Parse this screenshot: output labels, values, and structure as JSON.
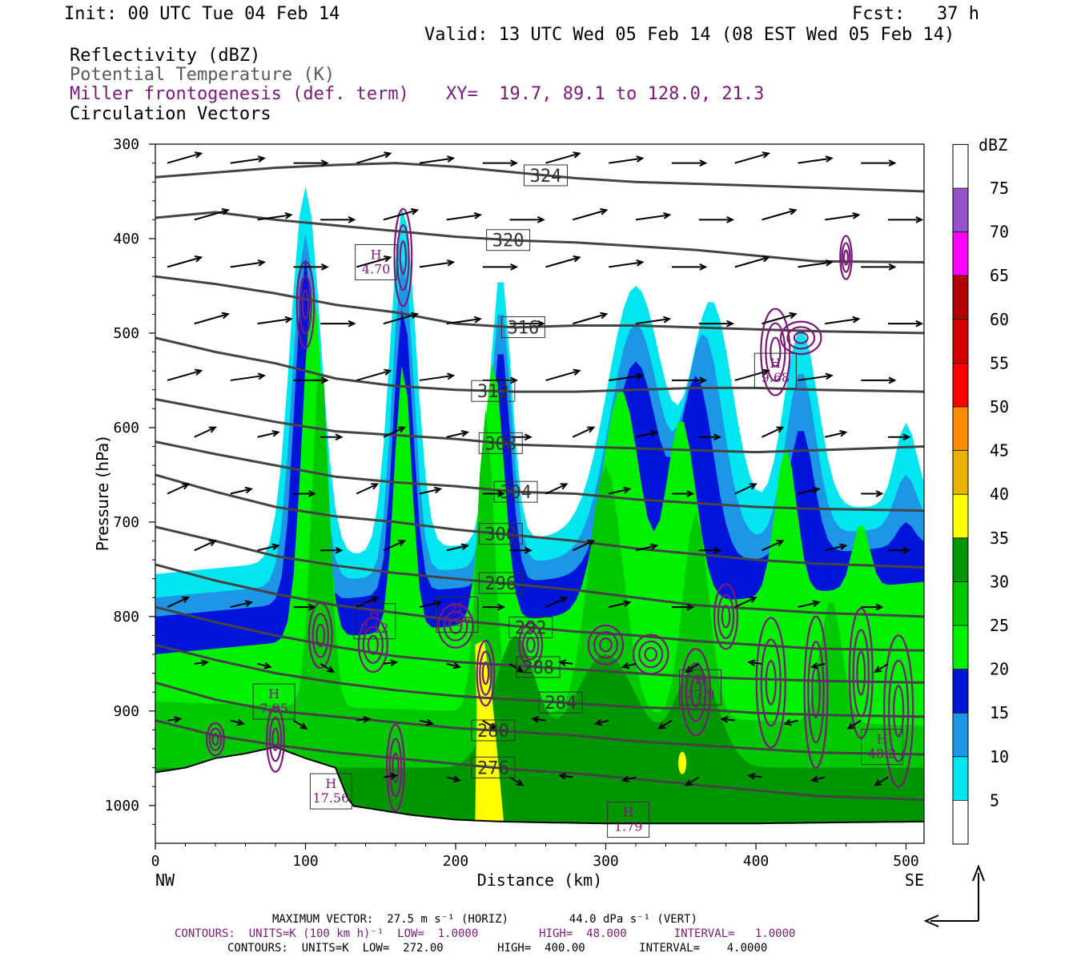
{
  "header": {
    "init": "Init: 00 UTC Tue 04 Feb 14",
    "fcst": "Fcst:   37 h",
    "valid": "Valid: 13 UTC Wed 05 Feb 14 (08 EST Wed 05 Feb 14)"
  },
  "legend_lines": {
    "reflectivity": "Reflectivity (dBZ)",
    "theta": "Potential Temperature (K)",
    "miller": "Miller frontogenesis (def. term)",
    "xy": "XY=  19.7, 89.1 to 128.0, 21.3",
    "vectors": "Circulation Vectors"
  },
  "colors": {
    "cyan": "#00e6f0",
    "lightblue": "#1e96e6",
    "blue": "#0014dc",
    "green": "#00f000",
    "midgreen": "#00c800",
    "darkgreen": "#009600",
    "yellow": "#ffff00",
    "gold": "#e6b400",
    "orange": "#ff8c00",
    "red": "#ff0000",
    "darkred": "#d20000",
    "maroon": "#b40000",
    "magenta": "#ff00ff",
    "violet": "#9650c8",
    "white": "#ffffff",
    "contour_theta": "#444444",
    "contour_fronto": "#7a1a7a"
  },
  "footer": {
    "max_vector": "MAXIMUM VECTOR:  27.5 m s⁻¹ (HORIZ)         44.0 dPa s⁻¹ (VERT)",
    "contours_fronto": "CONTOURS:  UNITS=K (100 km h)⁻¹  LOW=  1.0000         HIGH=  48.000       INTERVAL=   1.0000",
    "contours_theta": "CONTOURS:  UNITS=K  LOW=  272.00        HIGH=  400.00        INTERVAL=    4.0000"
  },
  "chart_data": {
    "type": "heatmap",
    "title": "Reflectivity (dBZ)",
    "xlabel": "Distance (km)",
    "ylabel": "Pressure (hPa)",
    "xlim": [
      0,
      512
    ],
    "ylim": [
      1040,
      300
    ],
    "x_ticks": [
      0,
      100,
      200,
      300,
      400,
      500
    ],
    "x_tick_labels": [
      "0",
      "100",
      "200",
      "300",
      "400",
      "500"
    ],
    "y_ticks": [
      300,
      400,
      500,
      600,
      700,
      800,
      900,
      1000
    ],
    "y_tick_labels": [
      "300",
      "400",
      "500",
      "600",
      "700",
      "800",
      "900",
      "1000"
    ],
    "x_end_labels": {
      "left": "NW",
      "right": "SE"
    },
    "colorbar": {
      "unit": "dBZ",
      "levels": [
        "5",
        "10",
        "15",
        "20",
        "25",
        "30",
        "35",
        "40",
        "45",
        "50",
        "55",
        "60",
        "65",
        "70",
        "75"
      ]
    },
    "theta_contours": [
      {
        "label": "324",
        "p": [
          335,
          330,
          325,
          322,
          320,
          324,
          330,
          336,
          340,
          342,
          344,
          346,
          350
        ]
      },
      {
        "label": "320",
        "p": [
          378,
          372,
          380,
          386,
          392,
          398,
          402,
          404,
          408,
          412,
          418,
          424,
          425
        ]
      },
      {
        "label": "316",
        "p": [
          440,
          448,
          458,
          470,
          478,
          490,
          494,
          492,
          492,
          494,
          496,
          498,
          500
        ]
      },
      {
        "label": "312",
        "p": [
          505,
          520,
          532,
          548,
          556,
          560,
          562,
          562,
          560,
          558,
          558,
          560,
          562
        ]
      },
      {
        "label": "308",
        "p": [
          570,
          582,
          594,
          604,
          608,
          612,
          618,
          620,
          622,
          624,
          626,
          624,
          620
        ]
      },
      {
        "label": "304",
        "p": [
          615,
          628,
          640,
          652,
          658,
          662,
          668,
          670,
          676,
          680,
          684,
          686,
          688
        ]
      },
      {
        "label": "300",
        "p": [
          650,
          668,
          684,
          694,
          700,
          708,
          714,
          720,
          728,
          734,
          740,
          744,
          748
        ]
      },
      {
        "label": "296",
        "p": [
          705,
          720,
          736,
          746,
          754,
          760,
          766,
          772,
          780,
          788,
          792,
          796,
          800
        ]
      },
      {
        "label": "292",
        "p": [
          745,
          762,
          776,
          788,
          796,
          804,
          810,
          816,
          820,
          826,
          830,
          834,
          836
        ]
      },
      {
        "label": "288",
        "p": [
          790,
          806,
          820,
          832,
          842,
          848,
          852,
          856,
          860,
          864,
          866,
          868,
          870
        ]
      },
      {
        "label": "284",
        "p": [
          830,
          846,
          860,
          870,
          878,
          884,
          888,
          892,
          896,
          898,
          902,
          904,
          906
        ]
      },
      {
        "label": "280",
        "p": [
          870,
          888,
          900,
          906,
          912,
          918,
          922,
          926,
          932,
          936,
          940,
          944,
          946
        ]
      },
      {
        "label": "276",
        "p": [
          910,
          926,
          936,
          944,
          950,
          956,
          962,
          966,
          972,
          978,
          984,
          990,
          994
        ]
      }
    ],
    "theta_contour_x": [
      0,
      40,
      80,
      120,
      160,
      200,
      240,
      280,
      320,
      360,
      400,
      440,
      512
    ],
    "fronto_maxima": [
      {
        "label": "H\n4.70",
        "x": 147,
        "p": 425
      },
      {
        "label": "H\n9.68",
        "x": 413,
        "p": 540
      },
      {
        "label": "H\n7.12",
        "x": 146,
        "p": 805
      },
      {
        "label": "H\n5.07",
        "x": 201,
        "p": 798
      },
      {
        "label": "H\n7.95",
        "x": 79,
        "p": 890
      },
      {
        "label": "H\n17.56",
        "x": 117,
        "p": 985
      },
      {
        "label": "H\n1.79",
        "x": 315,
        "p": 1015
      },
      {
        "label": "H\n27.9",
        "x": 363,
        "p": 875
      },
      {
        "label": "H\n48.2",
        "x": 484,
        "p": 938
      }
    ]
  }
}
